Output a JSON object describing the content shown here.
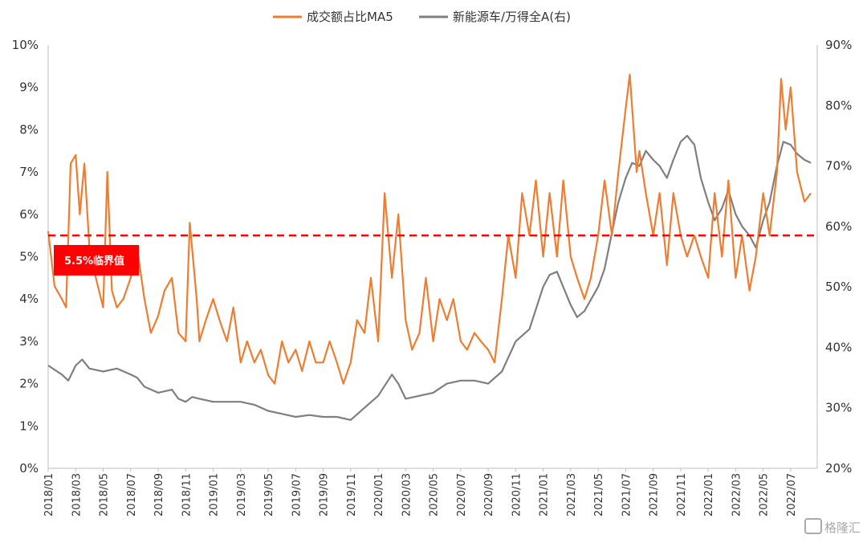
{
  "chart_data": {
    "type": "line",
    "legend": [
      {
        "name": "成交额占比MA5",
        "color": "#ED7D31"
      },
      {
        "name": "新能源车/万得全A(右)",
        "color": "#7F7F7F"
      }
    ],
    "legend_position": "top",
    "y_left": {
      "range": [
        0,
        10
      ],
      "ticks": [
        "0%",
        "1%",
        "2%",
        "3%",
        "4%",
        "5%",
        "6%",
        "7%",
        "8%",
        "9%",
        "10%"
      ]
    },
    "y_right": {
      "range": [
        20,
        90
      ],
      "ticks": [
        "20%",
        "30%",
        "40%",
        "50%",
        "60%",
        "70%",
        "80%",
        "90%"
      ]
    },
    "x_range": [
      "2018/01",
      "2022/08"
    ],
    "x_ticks": [
      "2018/01",
      "2018/03",
      "2018/05",
      "2018/07",
      "2018/09",
      "2018/11",
      "2019/01",
      "2019/03",
      "2019/05",
      "2019/07",
      "2019/09",
      "2019/11",
      "2020/01",
      "2020/03",
      "2020/05",
      "2020/07",
      "2020/09",
      "2020/11",
      "2021/01",
      "2021/03",
      "2021/05",
      "2021/07",
      "2021/09",
      "2021/11",
      "2022/01",
      "2022/03",
      "2022/05",
      "2022/07"
    ],
    "grid": false,
    "threshold": {
      "value": 5.5,
      "label": "5.5%临界值",
      "color": "#FF0000"
    },
    "series": [
      {
        "name": "成交额占比MA5",
        "axis": "left",
        "points": [
          [
            "2018/01",
            5.6
          ],
          [
            "2018/01/15",
            4.3
          ],
          [
            "2018/02",
            4.0
          ],
          [
            "2018/02/10",
            3.8
          ],
          [
            "2018/02/20",
            7.2
          ],
          [
            "2018/03",
            7.4
          ],
          [
            "2018/03/10",
            6.0
          ],
          [
            "2018/03/20",
            7.2
          ],
          [
            "2018/04",
            5.2
          ],
          [
            "2018/04/15",
            4.5
          ],
          [
            "2018/05",
            3.8
          ],
          [
            "2018/05/10",
            7.0
          ],
          [
            "2018/05/20",
            4.2
          ],
          [
            "2018/06",
            3.8
          ],
          [
            "2018/06/15",
            4.0
          ],
          [
            "2018/07",
            4.5
          ],
          [
            "2018/07/15",
            5.2
          ],
          [
            "2018/08",
            4.0
          ],
          [
            "2018/08/15",
            3.2
          ],
          [
            "2018/09",
            3.6
          ],
          [
            "2018/09/15",
            4.2
          ],
          [
            "2018/10",
            4.5
          ],
          [
            "2018/10/15",
            3.2
          ],
          [
            "2018/11",
            3.0
          ],
          [
            "2018/11/10",
            5.8
          ],
          [
            "2018/11/25",
            4.0
          ],
          [
            "2018/12",
            3.0
          ],
          [
            "2018/12/15",
            3.5
          ],
          [
            "2019/01",
            4.0
          ],
          [
            "2019/01/15",
            3.5
          ],
          [
            "2019/02",
            3.0
          ],
          [
            "2019/02/15",
            3.8
          ],
          [
            "2019/03",
            2.5
          ],
          [
            "2019/03/15",
            3.0
          ],
          [
            "2019/04",
            2.5
          ],
          [
            "2019/04/15",
            2.8
          ],
          [
            "2019/05",
            2.2
          ],
          [
            "2019/05/15",
            2.0
          ],
          [
            "2019/06",
            3.0
          ],
          [
            "2019/06/15",
            2.5
          ],
          [
            "2019/07",
            2.8
          ],
          [
            "2019/07/15",
            2.3
          ],
          [
            "2019/08",
            3.0
          ],
          [
            "2019/08/15",
            2.5
          ],
          [
            "2019/09",
            2.5
          ],
          [
            "2019/09/15",
            3.0
          ],
          [
            "2019/10",
            2.5
          ],
          [
            "2019/10/15",
            2.0
          ],
          [
            "2019/11",
            2.5
          ],
          [
            "2019/11/15",
            3.5
          ],
          [
            "2019/12",
            3.2
          ],
          [
            "2019/12/15",
            4.5
          ],
          [
            "2020/01",
            3.0
          ],
          [
            "2020/01/15",
            6.5
          ],
          [
            "2020/02",
            4.5
          ],
          [
            "2020/02/15",
            6.0
          ],
          [
            "2020/03",
            3.5
          ],
          [
            "2020/03/15",
            2.8
          ],
          [
            "2020/04",
            3.2
          ],
          [
            "2020/04/15",
            4.5
          ],
          [
            "2020/05",
            3.0
          ],
          [
            "2020/05/15",
            4.0
          ],
          [
            "2020/06",
            3.5
          ],
          [
            "2020/06/15",
            4.0
          ],
          [
            "2020/07",
            3.0
          ],
          [
            "2020/07/15",
            2.8
          ],
          [
            "2020/08",
            3.2
          ],
          [
            "2020/08/15",
            3.0
          ],
          [
            "2020/09",
            2.8
          ],
          [
            "2020/09/15",
            2.5
          ],
          [
            "2020/10",
            4.0
          ],
          [
            "2020/10/15",
            5.5
          ],
          [
            "2020/11",
            4.5
          ],
          [
            "2020/11/15",
            6.5
          ],
          [
            "2020/12",
            5.5
          ],
          [
            "2020/12/15",
            6.8
          ],
          [
            "2021/01",
            5.0
          ],
          [
            "2021/01/15",
            6.5
          ],
          [
            "2021/02",
            5.0
          ],
          [
            "2021/02/15",
            6.8
          ],
          [
            "2021/03",
            5.0
          ],
          [
            "2021/03/15",
            4.5
          ],
          [
            "2021/04",
            4.0
          ],
          [
            "2021/04/15",
            4.5
          ],
          [
            "2021/05",
            5.5
          ],
          [
            "2021/05/15",
            6.8
          ],
          [
            "2021/06",
            5.5
          ],
          [
            "2021/06/15",
            7.0
          ],
          [
            "2021/07",
            8.5
          ],
          [
            "2021/07/10",
            9.3
          ],
          [
            "2021/07/25",
            7.0
          ],
          [
            "2021/08",
            7.5
          ],
          [
            "2021/08/15",
            6.5
          ],
          [
            "2021/09",
            5.5
          ],
          [
            "2021/09/15",
            6.5
          ],
          [
            "2021/10",
            4.8
          ],
          [
            "2021/10/15",
            6.5
          ],
          [
            "2021/11",
            5.5
          ],
          [
            "2021/11/15",
            5.0
          ],
          [
            "2021/12",
            5.5
          ],
          [
            "2021/12/15",
            5.0
          ],
          [
            "2022/01",
            4.5
          ],
          [
            "2022/01/15",
            6.5
          ],
          [
            "2022/02",
            5.0
          ],
          [
            "2022/02/15",
            6.8
          ],
          [
            "2022/03",
            4.5
          ],
          [
            "2022/03/15",
            5.5
          ],
          [
            "2022/04",
            4.2
          ],
          [
            "2022/04/15",
            5.0
          ],
          [
            "2022/05",
            6.5
          ],
          [
            "2022/05/15",
            5.5
          ],
          [
            "2022/06",
            7.0
          ],
          [
            "2022/06/10",
            9.2
          ],
          [
            "2022/06/20",
            8.0
          ],
          [
            "2022/07",
            9.0
          ],
          [
            "2022/07/15",
            7.0
          ],
          [
            "2022/08",
            6.3
          ],
          [
            "2022/08/15",
            6.5
          ]
        ]
      },
      {
        "name": "新能源车/万得全A(右)",
        "axis": "right",
        "points": [
          [
            "2018/01",
            37.0
          ],
          [
            "2018/02",
            35.5
          ],
          [
            "2018/02/15",
            34.5
          ],
          [
            "2018/03",
            37.0
          ],
          [
            "2018/03/15",
            38.0
          ],
          [
            "2018/04",
            36.5
          ],
          [
            "2018/05",
            36.0
          ],
          [
            "2018/06",
            36.5
          ],
          [
            "2018/07",
            35.5
          ],
          [
            "2018/07/15",
            35.0
          ],
          [
            "2018/08",
            33.5
          ],
          [
            "2018/09",
            32.5
          ],
          [
            "2018/10",
            33.0
          ],
          [
            "2018/10/15",
            31.5
          ],
          [
            "2018/11",
            31.0
          ],
          [
            "2018/11/15",
            31.8
          ],
          [
            "2018/12",
            31.5
          ],
          [
            "2019/01",
            31.0
          ],
          [
            "2019/02",
            31.0
          ],
          [
            "2019/03",
            31.0
          ],
          [
            "2019/04",
            30.5
          ],
          [
            "2019/05",
            29.5
          ],
          [
            "2019/06",
            29.0
          ],
          [
            "2019/07",
            28.5
          ],
          [
            "2019/08",
            28.8
          ],
          [
            "2019/09",
            28.5
          ],
          [
            "2019/10",
            28.5
          ],
          [
            "2019/11",
            28.0
          ],
          [
            "2019/12",
            30.0
          ],
          [
            "2020/01",
            32.0
          ],
          [
            "2020/02",
            35.5
          ],
          [
            "2020/02/15",
            34.0
          ],
          [
            "2020/03",
            31.5
          ],
          [
            "2020/04",
            32.0
          ],
          [
            "2020/05",
            32.5
          ],
          [
            "2020/06",
            34.0
          ],
          [
            "2020/07",
            34.5
          ],
          [
            "2020/08",
            34.5
          ],
          [
            "2020/09",
            34.0
          ],
          [
            "2020/10",
            36.0
          ],
          [
            "2020/11",
            41.0
          ],
          [
            "2020/12",
            43.0
          ],
          [
            "2021/01",
            50.0
          ],
          [
            "2021/01/15",
            52.0
          ],
          [
            "2021/02",
            52.5
          ],
          [
            "2021/03",
            47.0
          ],
          [
            "2021/03/15",
            45.0
          ],
          [
            "2021/04",
            46.0
          ],
          [
            "2021/05",
            50.0
          ],
          [
            "2021/05/15",
            53.0
          ],
          [
            "2021/06",
            59.0
          ],
          [
            "2021/06/15",
            64.0
          ],
          [
            "2021/07",
            68.0
          ],
          [
            "2021/07/15",
            70.5
          ],
          [
            "2021/08",
            70.0
          ],
          [
            "2021/08/15",
            72.5
          ],
          [
            "2021/09",
            71.0
          ],
          [
            "2021/09/15",
            70.0
          ],
          [
            "2021/10",
            68.0
          ],
          [
            "2021/10/15",
            71.0
          ],
          [
            "2021/11",
            74.0
          ],
          [
            "2021/11/15",
            75.0
          ],
          [
            "2021/12",
            73.5
          ],
          [
            "2021/12/15",
            68.0
          ],
          [
            "2022/01",
            64.0
          ],
          [
            "2022/01/15",
            61.0
          ],
          [
            "2022/02",
            63.0
          ],
          [
            "2022/02/15",
            66.0
          ],
          [
            "2022/03",
            62.0
          ],
          [
            "2022/03/15",
            60.0
          ],
          [
            "2022/04",
            58.5
          ],
          [
            "2022/04/15",
            56.5
          ],
          [
            "2022/05",
            61.0
          ],
          [
            "2022/05/15",
            64.0
          ],
          [
            "2022/06",
            70.0
          ],
          [
            "2022/06/15",
            74.0
          ],
          [
            "2022/07",
            73.5
          ],
          [
            "2022/07/15",
            72.0
          ],
          [
            "2022/08",
            71.0
          ],
          [
            "2022/08/15",
            70.5
          ]
        ]
      }
    ]
  },
  "watermark": {
    "logo_icon": "gelonghui-logo",
    "text": "格隆汇"
  }
}
